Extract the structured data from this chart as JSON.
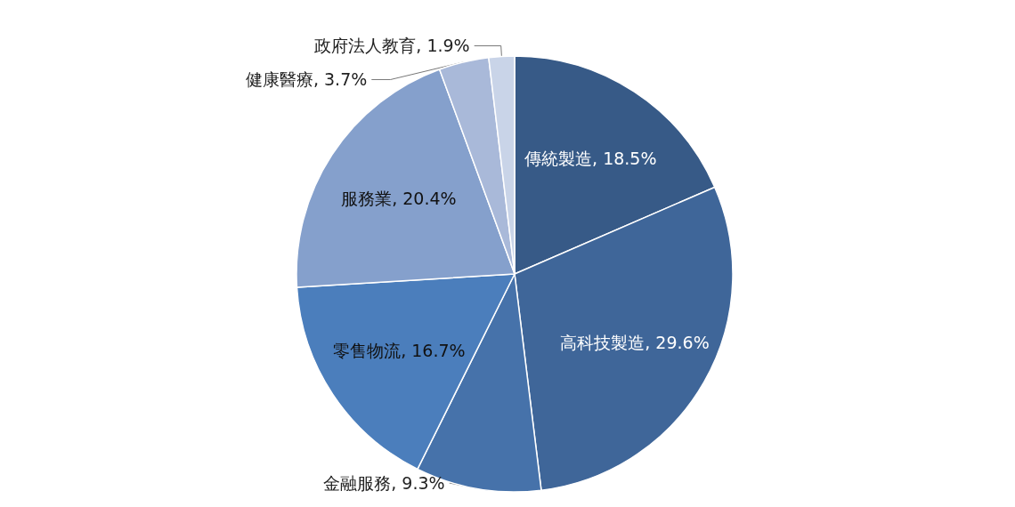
{
  "chart_data": {
    "type": "pie",
    "categories": [
      "傳統製造",
      "高科技製造",
      "金融服務",
      "零售物流",
      "服務業",
      "健康醫療",
      "政府法人教育"
    ],
    "values": [
      18.5,
      29.6,
      9.3,
      16.7,
      20.4,
      3.7,
      1.9
    ],
    "colors": [
      "#375a87",
      "#3f6699",
      "#4672aa",
      "#4b7ebc",
      "#85a0cc",
      "#a9b9d9",
      "#c9d4e8"
    ],
    "value_labels": [
      "18.5%",
      "29.6%",
      "9.3%",
      "16.7%",
      "20.4%",
      "3.7%",
      "1.9%"
    ],
    "legend": false
  }
}
